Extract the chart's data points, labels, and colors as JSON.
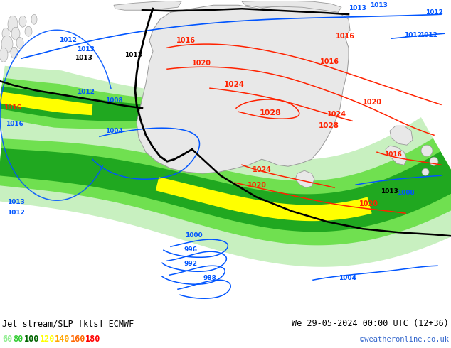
{
  "title_left": "Jet stream/SLP [kts] ECMWF",
  "title_right": "We 29-05-2024 00:00 UTC (12+36)",
  "credit": "©weatheronline.co.uk",
  "legend_values": [
    "60",
    "80",
    "100",
    "120",
    "140",
    "160",
    "180"
  ],
  "legend_colors": [
    "#90ee90",
    "#32cd32",
    "#006400",
    "#ffff00",
    "#ffa500",
    "#ff6600",
    "#ff0000"
  ],
  "background_color": "#ffffff",
  "ocean_color": "#ddeeff",
  "land_color": "#e8e8e8",
  "jet_60_color": "#c8f0c0",
  "jet_80_color": "#70e050",
  "jet_100_color": "#20a820",
  "jet_120_color": "#ffff00",
  "jet_140_color": "#ffaa00",
  "jet_160_color": "#ff5500",
  "jet_180_color": "#ff0000",
  "slp_blue": "#0055ff",
  "slp_red": "#ff2200",
  "front_color": "#000000",
  "fig_width": 6.34,
  "fig_height": 4.9,
  "dpi": 100
}
